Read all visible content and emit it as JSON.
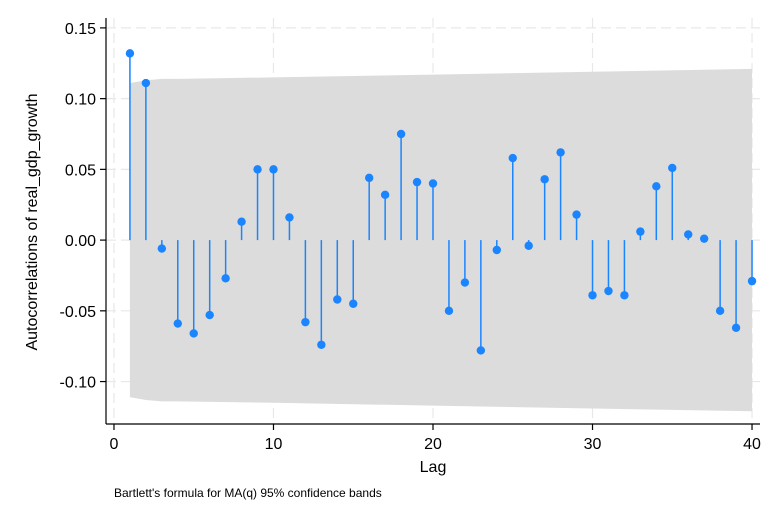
{
  "chart_data": {
    "type": "scatter",
    "subtype": "stem (autocorrelogram)",
    "xlabel": "Lag",
    "ylabel": "Autocorrelations of real_gdp_growth",
    "note": "Bartlett's formula for MA(q) 95% confidence bands",
    "xlim": [
      -0.5,
      40.5
    ],
    "ylim": [
      -0.13,
      0.157
    ],
    "x_ticks": [
      0,
      10,
      20,
      30,
      40
    ],
    "x_tick_labels": [
      "0",
      "10",
      "20",
      "30",
      "40"
    ],
    "y_ticks": [
      -0.1,
      -0.05,
      0.0,
      0.05,
      0.1,
      0.15
    ],
    "y_tick_labels": [
      "-0.10",
      "-0.05",
      "0.00",
      "0.05",
      "0.10",
      "0.15"
    ],
    "grid": true,
    "colors": {
      "stem": "#1a85ff",
      "band": "#dcdcdc",
      "grid": "#e8e8e8"
    },
    "series": [
      {
        "x": [
          1,
          2,
          3,
          4,
          5,
          6,
          7,
          8,
          9,
          10,
          11,
          12,
          13,
          14,
          15,
          16,
          17,
          18,
          19,
          20,
          21,
          22,
          23,
          24,
          25,
          26,
          27,
          28,
          29,
          30,
          31,
          32,
          33,
          34,
          35,
          36,
          37,
          38,
          39,
          40
        ],
        "values": [
          0.132,
          0.111,
          -0.006,
          -0.059,
          -0.066,
          -0.053,
          -0.027,
          0.013,
          0.05,
          0.05,
          0.016,
          -0.058,
          -0.074,
          -0.042,
          -0.045,
          0.044,
          0.032,
          0.075,
          0.041,
          0.04,
          -0.05,
          -0.03,
          -0.078,
          -0.007,
          0.058,
          -0.004,
          0.043,
          0.062,
          0.018,
          -0.039,
          -0.036,
          -0.039,
          0.006,
          0.038,
          0.051,
          0.004,
          0.001,
          -0.05,
          -0.062,
          -0.029
        ]
      }
    ],
    "confidence_band": {
      "x": [
        1,
        2,
        3,
        4,
        10,
        20,
        30,
        40
      ],
      "upper": [
        0.111,
        0.113,
        0.114,
        0.114,
        0.115,
        0.117,
        0.119,
        0.121
      ],
      "lower": [
        -0.111,
        -0.113,
        -0.114,
        -0.114,
        -0.115,
        -0.117,
        -0.119,
        -0.121
      ]
    }
  }
}
